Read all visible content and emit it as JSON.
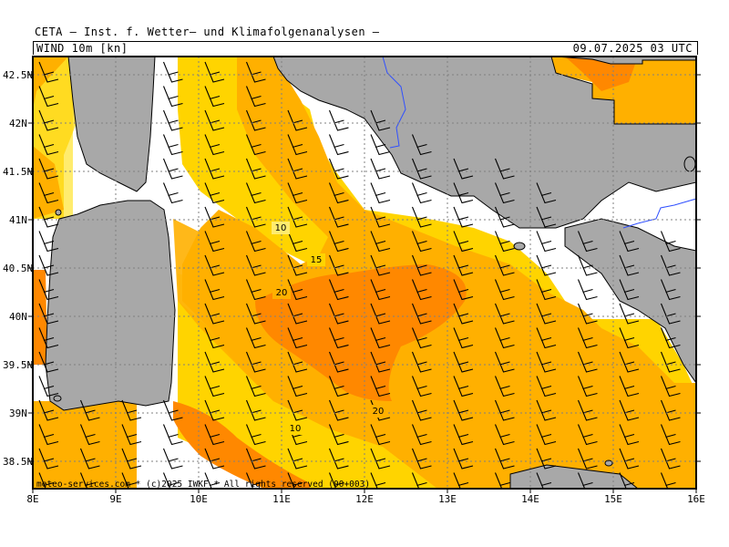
{
  "header": {
    "title": "CETA — Inst. f. Wetter— und Klimafolgenanalysen —",
    "parameter": "WIND 10m [kn]",
    "datetime": "09.07.2025 03 UTC"
  },
  "footer": {
    "credit": "meteo-services.com * (c)2025 IWKF * All rights reserved (00+003)"
  },
  "map": {
    "lat_labels": [
      "42.5N",
      "42N",
      "41.5N",
      "41N",
      "40.5N",
      "40N",
      "39.5N",
      "39N",
      "38.5N"
    ],
    "lon_labels": [
      "8E",
      "9E",
      "10E",
      "11E",
      "12E",
      "13E",
      "14E",
      "15E",
      "16E"
    ],
    "contour_labels": [
      "10",
      "15",
      "20",
      "20",
      "10"
    ],
    "colors": {
      "land": "#a8a8a8",
      "sea_low": "#ffffff",
      "wind_5_10": "#ffec6e",
      "wind_10_15": "#ffd400",
      "wind_15_20": "#ffb000",
      "wind_20_25": "#ff8800",
      "river": "#3050ff",
      "grid": "#808080"
    }
  }
}
